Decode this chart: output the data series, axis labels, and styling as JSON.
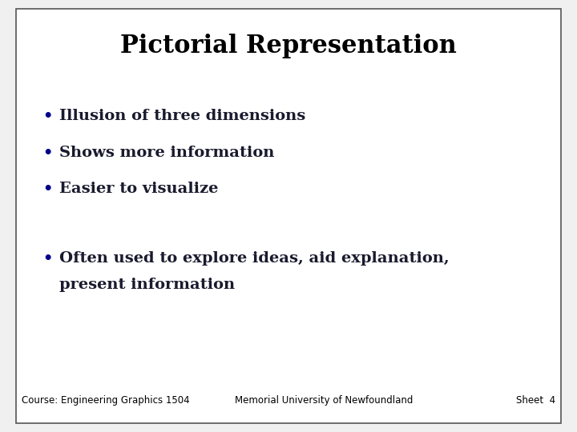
{
  "title": "Pictorial Representation",
  "title_fontsize": 22,
  "title_color": "#000000",
  "bullet_items_group1": [
    "Illusion of three dimensions",
    "Shows more information",
    "Easier to visualize"
  ],
  "bullet_items_group2": [
    "Often used to explore ideas, aid explanation,",
    "present information"
  ],
  "bullet_color": "#00008B",
  "text_color": "#1a1a2e",
  "text_fontsize": 14,
  "bg_color": "#f0f0f0",
  "slide_bg": "#ffffff",
  "border_color": "#555555",
  "footer_left": "Course: Engineering Graphics 1504",
  "footer_mid": "Memorial University of Newfoundland",
  "footer_right": "Sheet  4",
  "footer_fontsize": 8.5
}
